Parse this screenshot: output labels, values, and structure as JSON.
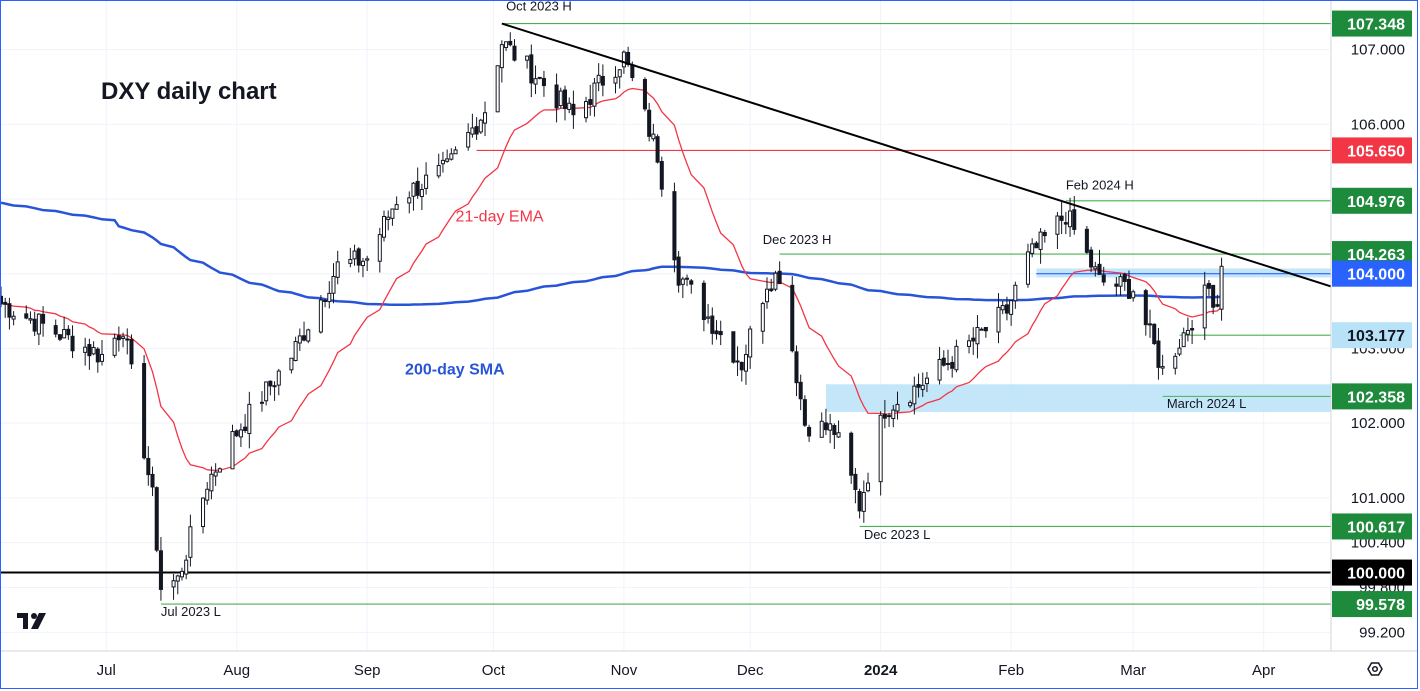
{
  "chart_data": {
    "type": "candlestick",
    "title": "DXY daily chart",
    "y_range": [
      98.95,
      107.65
    ],
    "x_range": [
      "2023-06-06",
      "2024-04-17"
    ],
    "price_ticks": [
      "107.000",
      "106.000",
      "105.000",
      "104.000",
      "103.000",
      "102.000",
      "101.000",
      "100.400",
      "99.800",
      "99.200"
    ],
    "time_ticks": [
      {
        "label": "Jul",
        "date": "2023-07-01"
      },
      {
        "label": "Aug",
        "date": "2023-08-01"
      },
      {
        "label": "Sep",
        "date": "2023-09-01"
      },
      {
        "label": "Oct",
        "date": "2023-10-01"
      },
      {
        "label": "Nov",
        "date": "2023-11-01"
      },
      {
        "label": "Dec",
        "date": "2023-12-01"
      },
      {
        "label": "2024",
        "date": "2024-01-01",
        "bold": true
      },
      {
        "label": "Feb",
        "date": "2024-02-01"
      },
      {
        "label": "Mar",
        "date": "2024-03-01"
      },
      {
        "label": "Apr",
        "date": "2024-04-01"
      }
    ],
    "indicators": [
      {
        "name": "21-day EMA",
        "color": "#f23645",
        "label_at": {
          "date": "2023-09-22",
          "price": 104.7
        }
      },
      {
        "name": "200-day SMA",
        "color": "#2855d8",
        "label_at": {
          "date": "2023-09-10",
          "price": 102.65
        }
      }
    ],
    "anchor_prices": [
      {
        "date": "2023-06-06",
        "close": 103.6
      },
      {
        "date": "2023-06-30",
        "close": 102.9
      },
      {
        "date": "2023-07-05",
        "close": 103.3
      },
      {
        "date": "2023-07-12",
        "close": 101.0
      },
      {
        "date": "2023-07-14",
        "close": 99.8
      },
      {
        "date": "2023-07-18",
        "close": 99.9
      },
      {
        "date": "2023-07-25",
        "close": 101.2
      },
      {
        "date": "2023-07-31",
        "close": 101.8
      },
      {
        "date": "2023-08-14",
        "close": 102.9
      },
      {
        "date": "2023-08-25",
        "close": 104.1
      },
      {
        "date": "2023-09-01",
        "close": 104.2
      },
      {
        "date": "2023-09-08",
        "close": 105.0
      },
      {
        "date": "2023-09-20",
        "close": 105.4
      },
      {
        "date": "2023-09-29",
        "close": 106.2
      },
      {
        "date": "2023-10-03",
        "close": 107.1
      },
      {
        "date": "2023-10-12",
        "close": 106.6
      },
      {
        "date": "2023-10-20",
        "close": 106.1
      },
      {
        "date": "2023-10-27",
        "close": 106.6
      },
      {
        "date": "2023-11-01",
        "close": 106.9
      },
      {
        "date": "2023-11-09",
        "close": 105.6
      },
      {
        "date": "2023-11-14",
        "close": 104.0
      },
      {
        "date": "2023-11-20",
        "close": 103.5
      },
      {
        "date": "2023-11-29",
        "close": 102.8
      },
      {
        "date": "2023-12-05",
        "close": 103.9
      },
      {
        "date": "2023-12-08",
        "close": 104.0
      },
      {
        "date": "2023-12-14",
        "close": 102.0
      },
      {
        "date": "2023-12-21",
        "close": 101.9
      },
      {
        "date": "2023-12-27",
        "close": 100.9
      },
      {
        "date": "2024-01-02",
        "close": 102.2
      },
      {
        "date": "2024-01-10",
        "close": 102.5
      },
      {
        "date": "2024-01-19",
        "close": 102.9
      },
      {
        "date": "2024-01-31",
        "close": 103.5
      },
      {
        "date": "2024-02-05",
        "close": 104.2
      },
      {
        "date": "2024-02-14",
        "close": 104.8
      },
      {
        "date": "2024-02-22",
        "close": 103.9
      },
      {
        "date": "2024-03-01",
        "close": 103.8
      },
      {
        "date": "2024-03-08",
        "close": 102.7
      },
      {
        "date": "2024-03-14",
        "close": 103.3
      },
      {
        "date": "2024-03-19",
        "close": 103.8
      },
      {
        "date": "2024-03-21",
        "close": 103.6
      },
      {
        "date": "2024-03-22",
        "close": 104.2
      }
    ],
    "price_labels": [
      {
        "label": "107.348",
        "value": 107.348,
        "bg": "#1e8a3c",
        "fg": "#ffffff",
        "line_color": "#4caf50",
        "line_from": "2023-10-03",
        "style": "solid"
      },
      {
        "label": "105.650",
        "value": 105.65,
        "bg": "#f23645",
        "fg": "#ffffff",
        "line_color": "#f23645",
        "line_from": "2023-09-27",
        "style": "solid"
      },
      {
        "label": "104.976",
        "value": 104.976,
        "bg": "#1e8a3c",
        "fg": "#ffffff",
        "line_color": "#4caf50",
        "line_from": "2024-02-14",
        "style": "solid"
      },
      {
        "label": "104.263",
        "value": 104.263,
        "bg": "#1e8a3c",
        "fg": "#ffffff",
        "line_color": "#4caf50",
        "line_from": "2023-12-08",
        "style": "solid"
      },
      {
        "label": "104.000",
        "value": 104.0,
        "bg": "#2962ff",
        "fg": "#ffffff",
        "line_color": "#2962ff",
        "line_from": "2024-02-07",
        "style": "solid"
      },
      {
        "label": "103.177",
        "value": 103.177,
        "bg": "#b8e2f8",
        "fg": "#131722",
        "line_color": "#4caf50",
        "line_from": "2024-03-12",
        "style": "solid"
      },
      {
        "label": "102.358",
        "value": 102.358,
        "bg": "#1e8a3c",
        "fg": "#ffffff",
        "line_color": "#4caf50",
        "line_from": "2024-03-08",
        "style": "solid"
      },
      {
        "label": "100.617",
        "value": 100.617,
        "bg": "#1e8a3c",
        "fg": "#ffffff",
        "line_color": "#4caf50",
        "line_from": "2023-12-27",
        "style": "solid"
      },
      {
        "label": "100.000",
        "value": 100.0,
        "bg": "#000000",
        "fg": "#ffffff",
        "line_color": "#000000",
        "line_from": "2023-06-06",
        "style": "bold"
      },
      {
        "label": "99.578",
        "value": 99.578,
        "bg": "#1e8a3c",
        "fg": "#ffffff",
        "line_color": "#4caf50",
        "line_from": "2023-07-14",
        "style": "solid"
      }
    ],
    "annotations": [
      {
        "text": "Oct 2023 H",
        "date": "2023-10-04",
        "price": 107.52
      },
      {
        "text": "Dec 2023 H",
        "date": "2023-12-04",
        "price": 104.4
      },
      {
        "text": "Feb 2024 H",
        "date": "2024-02-14",
        "price": 105.13
      },
      {
        "text": "Dec 2023 L",
        "date": "2023-12-28",
        "price": 100.45
      },
      {
        "text": "March 2024 L",
        "date": "2024-03-09",
        "price": 102.2
      },
      {
        "text": "Jul 2023 L",
        "date": "2023-07-14",
        "price": 99.42
      }
    ],
    "zones": [
      {
        "from_date": "2024-02-07",
        "to_date": "2024-04-17",
        "from_price": 103.95,
        "to_price": 104.07,
        "color": "#b8e2f8"
      },
      {
        "from_date": "2023-12-19",
        "to_date": "2024-04-17",
        "from_price": 102.15,
        "to_price": 102.52,
        "color": "#b8e2f8"
      }
    ],
    "trendline": {
      "from": {
        "date": "2023-10-03",
        "price": 107.348
      },
      "to": {
        "date": "2024-04-17",
        "price": 103.83
      },
      "color": "#000000"
    }
  },
  "branding": {
    "logo": "tradingview-logo"
  },
  "icons": {
    "settings": "gear-icon"
  }
}
